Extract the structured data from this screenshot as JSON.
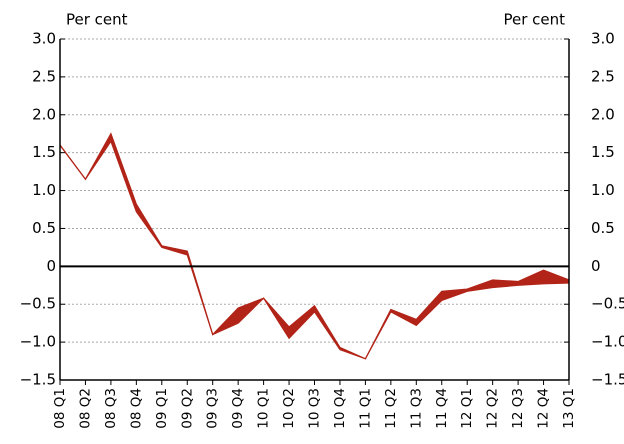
{
  "chart_data": {
    "type": "band",
    "y_label": "Per cent",
    "y2_label": "Per cent",
    "categories": [
      "08 Q1",
      "08 Q2",
      "08 Q3",
      "08 Q4",
      "09 Q1",
      "09 Q2",
      "09 Q3",
      "09 Q4",
      "10 Q1",
      "10 Q2",
      "10 Q3",
      "10 Q4",
      "11 Q1",
      "11 Q2",
      "11 Q3",
      "11 Q4",
      "12 Q1",
      "12 Q2",
      "12 Q3",
      "12 Q4",
      "13 Q1"
    ],
    "series": [
      {
        "color": "#b22418",
        "values": [
          1.6,
          1.15,
          1.75,
          0.82,
          0.27,
          0.2,
          -0.9,
          -0.55,
          -0.42,
          -0.8,
          -0.52,
          -1.07,
          -1.22,
          -0.57,
          -0.7,
          -0.33,
          -0.3,
          -0.18,
          -0.2,
          -0.05,
          -0.18
        ]
      },
      {
        "color": "#b22418",
        "values": [
          1.6,
          1.15,
          1.65,
          0.72,
          0.25,
          0.15,
          -0.9,
          -0.75,
          -0.42,
          -0.95,
          -0.6,
          -1.1,
          -1.22,
          -0.6,
          -0.78,
          -0.45,
          -0.33,
          -0.28,
          -0.25,
          -0.23,
          -0.22
        ]
      }
    ],
    "ylim": [
      -1.5,
      3.0
    ],
    "y2lim": [
      -1.5,
      3.0
    ],
    "yticks": [
      {
        "value": 3.0,
        "label": "3.0"
      },
      {
        "value": 2.5,
        "label": "2.5"
      },
      {
        "value": 2.0,
        "label": "2.0"
      },
      {
        "value": 1.5,
        "label": "1.5"
      },
      {
        "value": 1.0,
        "label": "1.0"
      },
      {
        "value": 0.5,
        "label": "0.5"
      },
      0,
      {
        "value": -0.5,
        "label": "−0.5"
      },
      {
        "value": -1.0,
        "label": "−1.0"
      },
      {
        "value": -1.5,
        "label": "−1.5"
      }
    ],
    "y2ticks": [
      {
        "value": 3.0,
        "label": "3.0"
      },
      {
        "value": 2.5,
        "label": "2.5"
      },
      {
        "value": 2.0,
        "label": "2.0"
      },
      {
        "value": 1.5,
        "label": "1.5"
      },
      {
        "value": 1.0,
        "label": "1.0"
      },
      {
        "value": 0.5,
        "label": "0.5"
      },
      0,
      {
        "value": -0.5,
        "label": "−0.5"
      },
      {
        "value": -1.0,
        "label": "−1.0"
      },
      {
        "value": -1.5,
        "label": "−1.5"
      }
    ],
    "grid": true
  }
}
